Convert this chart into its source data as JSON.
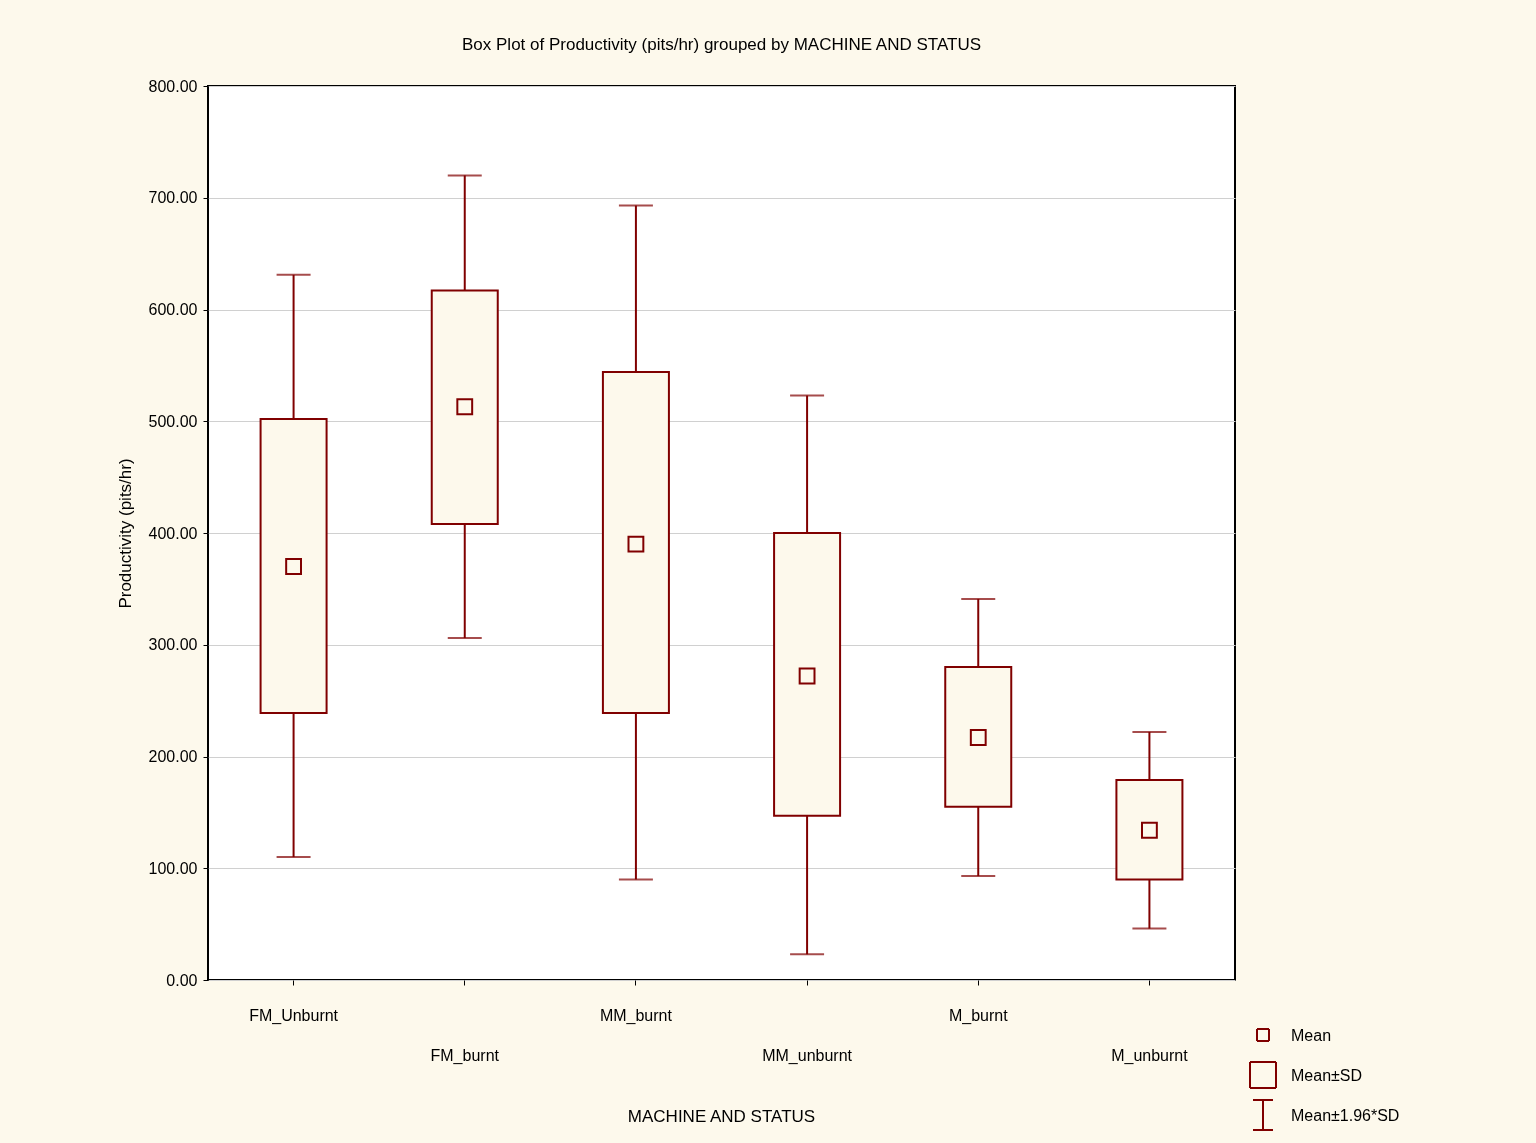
{
  "chart_data": {
    "type": "box",
    "title": "Box Plot of Productivity (pits/hr) grouped by  MACHINE AND STATUS",
    "xlabel": "MACHINE AND STATUS",
    "ylabel": "Productivity (pits/hr)",
    "categories": [
      "FM_Unburnt",
      "FM_burnt",
      "MM_burnt",
      "MM_unburnt",
      "M_burnt",
      "M_unburnt"
    ],
    "series": [
      {
        "color": "#800000",
        "boxes": [
          {
            "low": 110,
            "q1": 239,
            "mean": 370,
            "q3": 502,
            "high": 631
          },
          {
            "low": 306,
            "q1": 408,
            "mean": 513,
            "q3": 617,
            "high": 720
          },
          {
            "low": 90,
            "q1": 239,
            "mean": 390,
            "q3": 544,
            "high": 693
          },
          {
            "low": 23,
            "q1": 147,
            "mean": 272,
            "q3": 400,
            "high": 523
          },
          {
            "low": 93,
            "q1": 155,
            "mean": 217,
            "q3": 280,
            "high": 341
          },
          {
            "low": 46,
            "q1": 90,
            "mean": 134,
            "q3": 179,
            "high": 222
          }
        ]
      }
    ],
    "ylim": [
      0,
      800
    ],
    "yticks": [
      {
        "value": 0,
        "label": "0.00"
      },
      {
        "value": 100,
        "label": "100.00"
      },
      {
        "value": 200,
        "label": "200.00"
      },
      {
        "value": 300,
        "label": "300.00"
      },
      {
        "value": 400,
        "label": "400.00"
      },
      {
        "value": 500,
        "label": "500.00"
      },
      {
        "value": 600,
        "label": "600.00"
      },
      {
        "value": 700,
        "label": "700.00"
      },
      {
        "value": 800,
        "label": "800.00"
      }
    ],
    "grid": "y",
    "annotations": [
      "Mean",
      "Mean±SD",
      "Mean±1.96*SD"
    ]
  }
}
